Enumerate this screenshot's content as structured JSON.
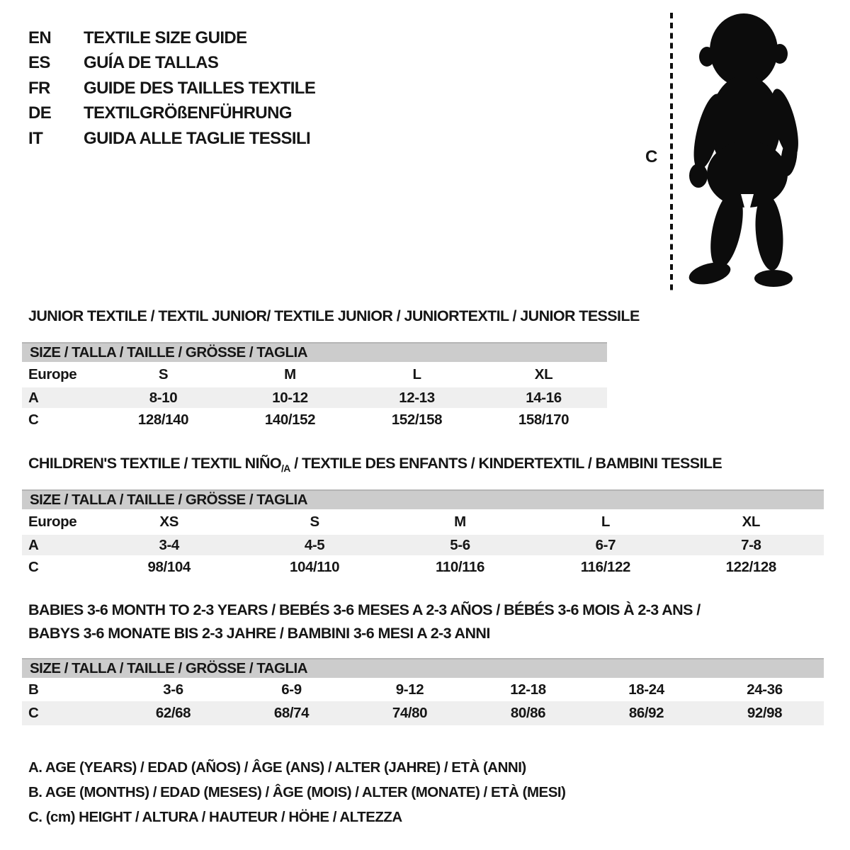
{
  "languages": [
    {
      "code": "EN",
      "label": "TEXTILE SIZE GUIDE"
    },
    {
      "code": "ES",
      "label": "GUÍA DE TALLAS"
    },
    {
      "code": "FR",
      "label": "GUIDE DES TAILLES TEXTILE"
    },
    {
      "code": "DE",
      "label": "TEXTILGRÖßENFÜHRUNG"
    },
    {
      "code": "IT",
      "label": "GUIDA ALLE TAGLIE TESSILI"
    }
  ],
  "figure": {
    "label": "C",
    "icon": "toddler-silhouette-icon"
  },
  "sections": {
    "junior": {
      "title": "JUNIOR TEXTILE / TEXTIL JUNIOR/ TEXTILE JUNIOR / JUNIORTEXTIL / JUNIOR TESSILE",
      "size_header": "SIZE / TALLA / TAILLE / GRÖSSE / TAGLIA",
      "rows": [
        {
          "label": "Europe",
          "values": [
            "S",
            "M",
            "L",
            "XL"
          ]
        },
        {
          "label": "A",
          "values": [
            "8-10",
            "10-12",
            "12-13",
            "14-16"
          ]
        },
        {
          "label": "C",
          "values": [
            "128/140",
            "140/152",
            "152/158",
            "158/170"
          ]
        }
      ]
    },
    "children": {
      "title_prefix": "CHILDREN'S TEXTILE / TEXTIL NIÑO",
      "title_sub": "/A",
      "title_suffix": " / TEXTILE DES ENFANTS / KINDERTEXTIL / BAMBINI TESSILE",
      "size_header": "SIZE / TALLA / TAILLE / GRÖSSE / TAGLIA",
      "rows": [
        {
          "label": "Europe",
          "values": [
            "XS",
            "S",
            "M",
            "L",
            "XL"
          ]
        },
        {
          "label": "A",
          "values": [
            "3-4",
            "4-5",
            "5-6",
            "6-7",
            "7-8"
          ]
        },
        {
          "label": "C",
          "values": [
            "98/104",
            "104/110",
            "110/116",
            "116/122",
            "122/128"
          ]
        }
      ]
    },
    "babies": {
      "title_line1": "BABIES 3-6 MONTH TO 2-3 YEARS / BEBÉS 3-6 MESES A 2-3 AÑOS / BÉBÉS 3-6 MOIS À 2-3 ANS /",
      "title_line2": "BABYS 3-6 MONATE BIS 2-3 JAHRE / BAMBINI 3-6 MESI A 2-3 ANNI",
      "size_header": "SIZE / TALLA / TAILLE / GRÖSSE / TAGLIA",
      "rows": [
        {
          "label": "B",
          "values": [
            "3-6",
            "6-9",
            "9-12",
            "12-18",
            "18-24",
            "24-36"
          ]
        },
        {
          "label": "C",
          "values": [
            "62/68",
            "68/74",
            "74/80",
            "80/86",
            "86/92",
            "92/98"
          ]
        }
      ]
    }
  },
  "footnotes": [
    "A. AGE (YEARS) / EDAD (AÑOS) / ÂGE (ANS) / ALTER (JAHRE) / ETÀ (ANNI)",
    "B. AGE (MONTHS) / EDAD (MESES) / ÂGE (MOIS) / ALTER (MONATE) / ETÀ (MESI)",
    "C. (cm) HEIGHT / ALTURA / HAUTEUR / HÖHE / ALTEZZA"
  ],
  "colors": {
    "header_bar": "#cccccc",
    "row_alt": "#efefef",
    "text": "#161616",
    "silhouette": "#0c0c0c"
  }
}
